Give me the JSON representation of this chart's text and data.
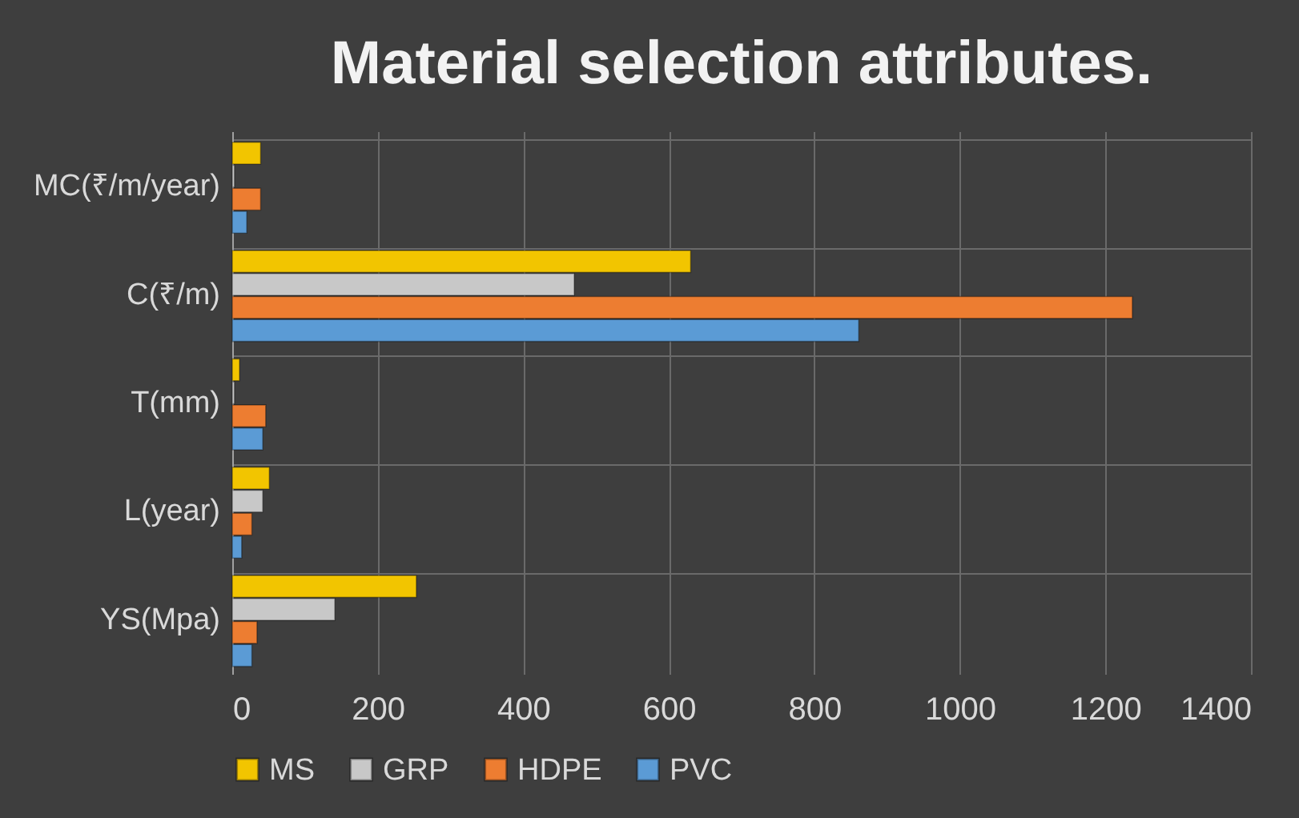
{
  "chart_data": {
    "type": "bar",
    "orientation": "horizontal",
    "title": "Material selection attributes.",
    "categories": [
      "MC(₹/m/year)",
      "C(₹/m)",
      "T(mm)",
      "L(year)",
      "YS(Mpa)"
    ],
    "series": [
      {
        "name": "MS",
        "color": "#f2c500",
        "values": [
          39,
          630,
          10,
          51,
          253
        ]
      },
      {
        "name": "GRP",
        "color": "#c8c8c8",
        "values": [
          3,
          470,
          3,
          42,
          141
        ]
      },
      {
        "name": "HDPE",
        "color": "#ed7d31",
        "values": [
          39,
          1237,
          46,
          27,
          34
        ]
      },
      {
        "name": "PVC",
        "color": "#5b9bd5",
        "values": [
          20,
          861,
          42,
          13,
          27
        ]
      }
    ],
    "xlim": [
      0,
      1400
    ],
    "xticks": [
      0,
      200,
      400,
      600,
      800,
      1000,
      1200,
      1400
    ],
    "grid": true,
    "legend": "bottom"
  }
}
